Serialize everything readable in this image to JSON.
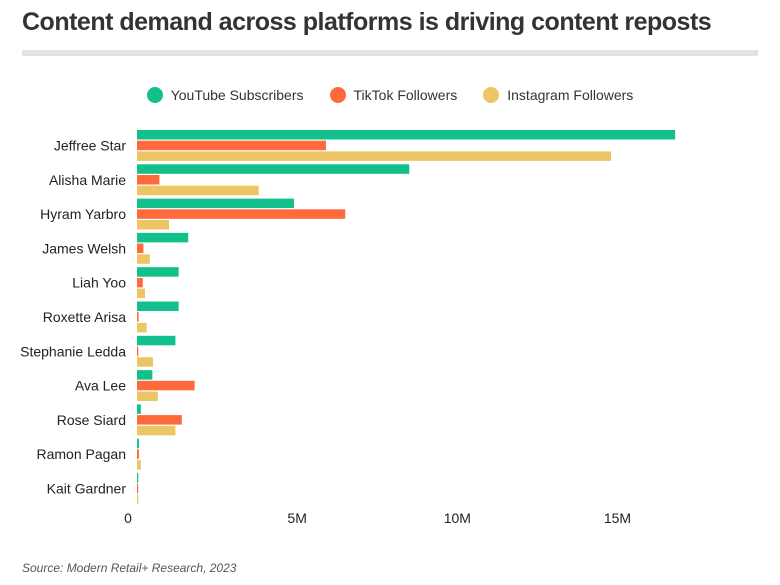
{
  "title": "Content demand across platforms is driving content reposts",
  "source": "Source: Modern Retail+ Research, 2023",
  "chart_data": {
    "type": "bar",
    "orientation": "horizontal",
    "title": "Content demand across platforms is driving content reposts",
    "xlabel": "",
    "ylabel": "",
    "xlim": [
      0,
      18700000
    ],
    "x_ticks": [
      0,
      5000000,
      10000000,
      15000000
    ],
    "x_tick_labels": [
      "0",
      "5M",
      "10M",
      "15M"
    ],
    "grid": false,
    "legend_position": "top",
    "categories": [
      "Jeffree Star",
      "Alisha Marie",
      "Hyram Yarbro",
      "James Welsh",
      "Liah Yoo",
      "Roxette Arisa",
      "Stephanie Ledda",
      "Ava Lee",
      "Rose Siard",
      "Ramon Pagan",
      "Kait Gardner"
    ],
    "series": [
      {
        "name": "YouTube Subscribers",
        "color": "#12c08c",
        "values": [
          16800000,
          8500000,
          4900000,
          1600000,
          1300000,
          1300000,
          1200000,
          480000,
          120000,
          60000,
          40000
        ]
      },
      {
        "name": "TikTok Followers",
        "color": "#ff6a3d",
        "values": [
          5900000,
          700000,
          6500000,
          200000,
          180000,
          50000,
          40000,
          1800000,
          1400000,
          60000,
          10000
        ]
      },
      {
        "name": "Instagram Followers",
        "color": "#ecc665",
        "values": [
          14800000,
          3800000,
          1000000,
          400000,
          250000,
          300000,
          500000,
          650000,
          1200000,
          120000,
          40000
        ]
      }
    ]
  }
}
